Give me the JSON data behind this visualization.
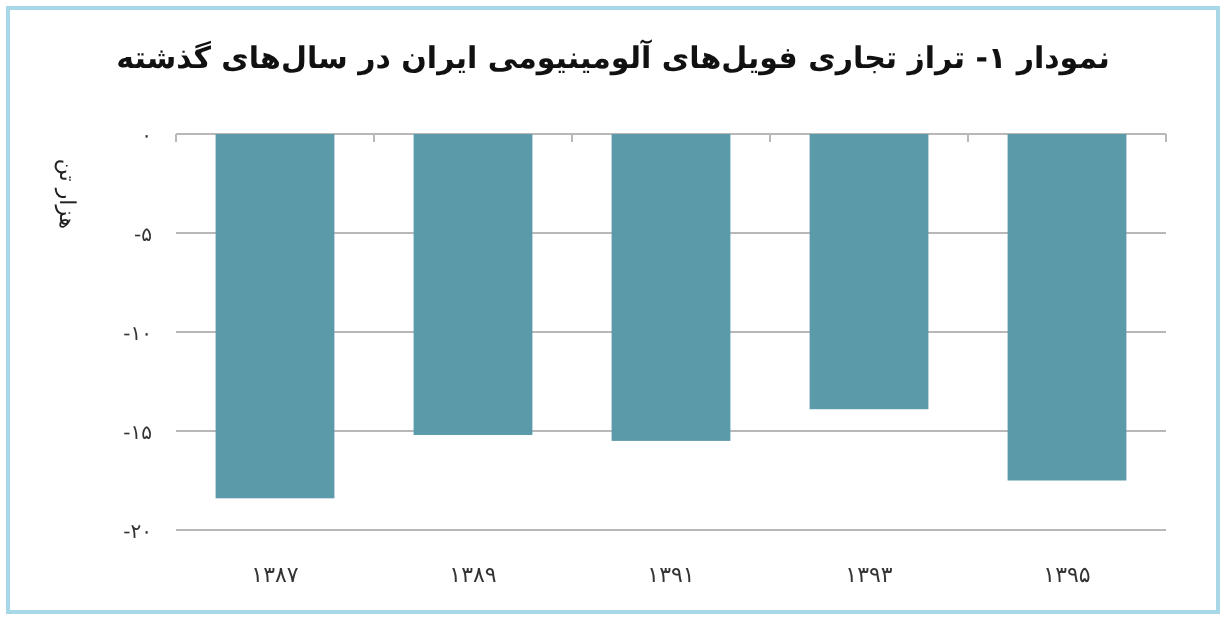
{
  "chart_data": {
    "type": "bar",
    "title": "نمودار ۱- تراز تجاری فویل‌های آلومینیومی ایران در سال‌های گذشته",
    "ylabel": "هزار تن",
    "categories": [
      "۱۳۸۷",
      "۱۳۸۹",
      "۱۳۹۱",
      "۱۳۹۳",
      "۱۳۹۵"
    ],
    "values": [
      -18.4,
      -15.2,
      -15.5,
      -13.9,
      -17.5
    ],
    "color": "#5b9aa8",
    "ylim": [
      -20,
      0
    ],
    "yticks": [
      {
        "value": 0,
        "label": "۰"
      },
      {
        "value": -5,
        "label": "-۵"
      },
      {
        "value": -10,
        "label": "-۱۰"
      },
      {
        "value": -15,
        "label": "-۱۵"
      },
      {
        "value": -20,
        "label": "-۲۰"
      }
    ],
    "grid": "y"
  }
}
